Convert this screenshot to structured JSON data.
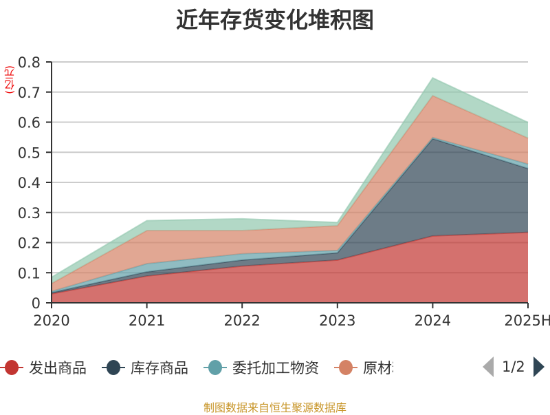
{
  "chart_data": {
    "type": "area",
    "stacked": true,
    "title": "近年存货变化堆积图",
    "ylabel": "(亿元)",
    "categories": [
      "2020",
      "2021",
      "2022",
      "2023",
      "2024",
      "2025H"
    ],
    "ylim": [
      0,
      0.8
    ],
    "yticks": [
      "0",
      "0.1",
      "0.2",
      "0.3",
      "0.4",
      "0.5",
      "0.6",
      "0.7",
      "0.8"
    ],
    "grid": true,
    "legend_position": "bottom",
    "series": [
      {
        "name": "发出商品",
        "color": "#c23531",
        "values": [
          0.03,
          0.089,
          0.122,
          0.142,
          0.222,
          0.234
        ]
      },
      {
        "name": "库存商品",
        "color": "#2f4554",
        "values": [
          0.004,
          0.014,
          0.02,
          0.024,
          0.323,
          0.212
        ]
      },
      {
        "name": "委托加工物资",
        "color": "#61a0a8",
        "values": [
          0.004,
          0.027,
          0.021,
          0.008,
          0.004,
          0.015
        ]
      },
      {
        "name": "原材料",
        "color": "#d48265",
        "values": [
          0.026,
          0.11,
          0.077,
          0.082,
          0.139,
          0.086
        ]
      },
      {
        "name": "",
        "color": "#91c7ae",
        "values": [
          0.021,
          0.033,
          0.039,
          0.011,
          0.059,
          0.052
        ]
      }
    ]
  },
  "legend": {
    "page": "1/2"
  },
  "source": "制图数据来自恒生聚源数据库"
}
